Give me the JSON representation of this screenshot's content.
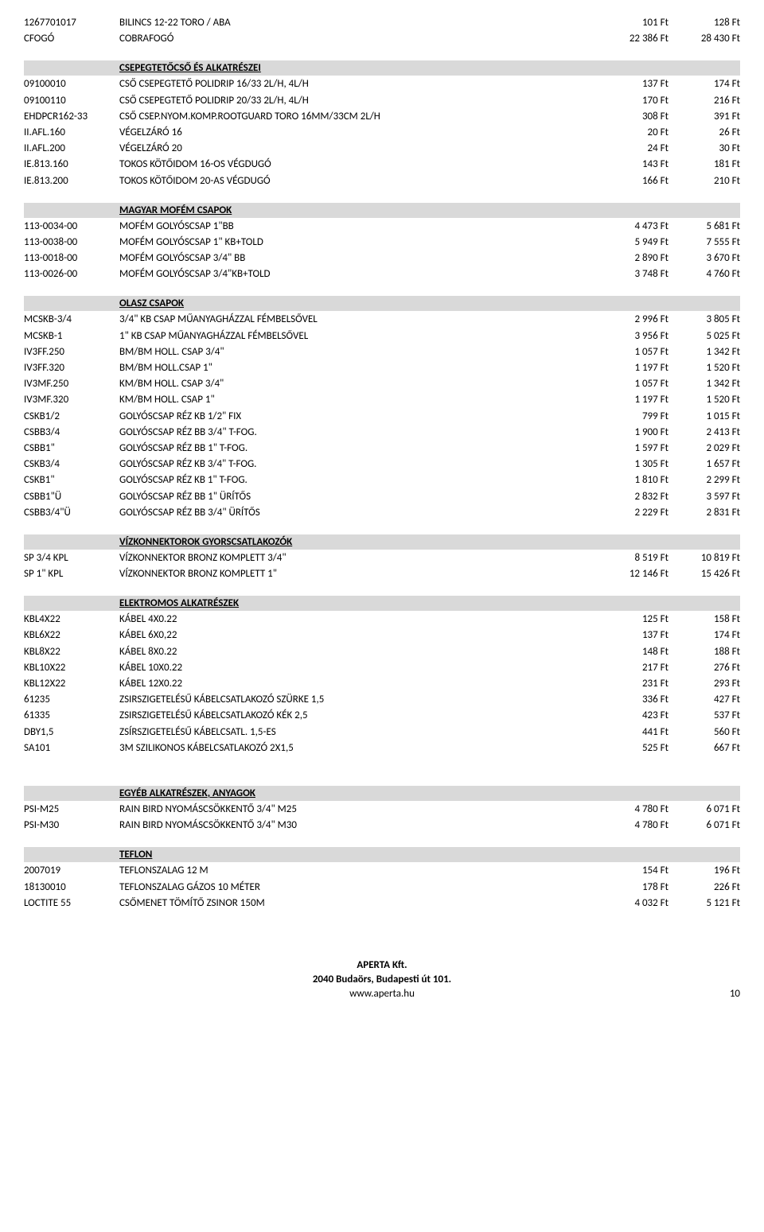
{
  "top_rows": [
    {
      "code": "1267701017",
      "desc": "BILINCS 12-22 TORO / ABA",
      "p1": "101 Ft",
      "p2": "128 Ft"
    },
    {
      "code": "CFOGÓ",
      "desc": "COBRAFOGÓ",
      "p1": "22 386 Ft",
      "p2": "28 430 Ft"
    }
  ],
  "sections": [
    {
      "title": "CSEPEGTETŐCSŐ ÉS ALKATRÉSZEI",
      "rows": [
        {
          "code": "09100010",
          "desc": "CSŐ CSEPEGTETŐ POLIDRIP 16/33 2L/H, 4L/H",
          "p1": "137 Ft",
          "p2": "174 Ft"
        },
        {
          "code": "09100110",
          "desc": "CSŐ CSEPEGTETŐ POLIDRIP 20/33 2L/H, 4L/H",
          "p1": "170 Ft",
          "p2": "216 Ft"
        },
        {
          "code": "EHDPCR162-33",
          "desc": "CSŐ CSEP.NYOM.KOMP.ROOTGUARD TORO 16MM/33CM 2L/H",
          "p1": "308 Ft",
          "p2": "391 Ft"
        },
        {
          "code": "II.AFL.160",
          "desc": "VÉGELZÁRÓ 16",
          "p1": "20 Ft",
          "p2": "26 Ft"
        },
        {
          "code": "II.AFL.200",
          "desc": "VÉGELZÁRÓ 20",
          "p1": "24 Ft",
          "p2": "30 Ft"
        },
        {
          "code": "IE.813.160",
          "desc": "TOKOS KÖTŐIDOM 16-OS VÉGDUGÓ",
          "p1": "143 Ft",
          "p2": "181 Ft"
        },
        {
          "code": "IE.813.200",
          "desc": "TOKOS KÖTŐIDOM 20-AS VÉGDUGÓ",
          "p1": "166 Ft",
          "p2": "210 Ft"
        }
      ]
    },
    {
      "title": "MAGYAR MOFÉM CSAPOK",
      "rows": [
        {
          "code": "113-0034-00",
          "desc": "MOFÉM GOLYÓSCSAP 1\"BB",
          "p1": "4 473 Ft",
          "p2": "5 681 Ft"
        },
        {
          "code": "113-0038-00",
          "desc": "MOFÉM GOLYÓSCSAP 1\" KB+TOLD",
          "p1": "5 949 Ft",
          "p2": "7 555 Ft"
        },
        {
          "code": "113-0018-00",
          "desc": "MOFÉM GOLYÓSCSAP 3/4\" BB",
          "p1": "2 890 Ft",
          "p2": "3 670 Ft"
        },
        {
          "code": "113-0026-00",
          "desc": "MOFÉM GOLYÓSCSAP 3/4\"KB+TOLD",
          "p1": "3 748 Ft",
          "p2": "4 760 Ft"
        }
      ]
    },
    {
      "title": "OLASZ CSAPOK",
      "rows": [
        {
          "code": "MCSKB-3/4",
          "desc": "3/4\" KB CSAP MŰANYAGHÁZZAL FÉMBELSŐVEL",
          "p1": "2 996 Ft",
          "p2": "3 805 Ft"
        },
        {
          "code": "MCSKB-1",
          "desc": "1\" KB CSAP MŰANYAGHÁZZAL FÉMBELSŐVEL",
          "p1": "3 956 Ft",
          "p2": "5 025 Ft"
        },
        {
          "code": "IV3FF.250",
          "desc": "BM/BM HOLL. CSAP 3/4\"",
          "p1": "1 057 Ft",
          "p2": "1 342 Ft"
        },
        {
          "code": "IV3FF.320",
          "desc": "BM/BM HOLL.CSAP 1\"",
          "p1": "1 197 Ft",
          "p2": "1 520 Ft"
        },
        {
          "code": "IV3MF.250",
          "desc": "KM/BM HOLL. CSAP 3/4\"",
          "p1": "1 057 Ft",
          "p2": "1 342 Ft"
        },
        {
          "code": "IV3MF.320",
          "desc": "KM/BM HOLL. CSAP 1\"",
          "p1": "1 197 Ft",
          "p2": "1 520 Ft"
        },
        {
          "code": "CSKB1/2",
          "desc": "GOLYÓSCSAP RÉZ KB 1/2\" FIX",
          "p1": "799 Ft",
          "p2": "1 015 Ft"
        },
        {
          "code": "CSBB3/4",
          "desc": "GOLYÓSCSAP RÉZ BB 3/4\"  T-FOG.",
          "p1": "1 900 Ft",
          "p2": "2 413 Ft"
        },
        {
          "code": "CSBB1\"",
          "desc": "GOLYÓSCSAP RÉZ BB 1\"  T-FOG.",
          "p1": "1 597 Ft",
          "p2": "2 029 Ft"
        },
        {
          "code": "CSKB3/4",
          "desc": "GOLYÓSCSAP RÉZ KB 3/4\"  T-FOG.",
          "p1": "1 305 Ft",
          "p2": "1 657 Ft"
        },
        {
          "code": "CSKB1\"",
          "desc": "GOLYÓSCSAP RÉZ KB 1\"  T-FOG.",
          "p1": "1 810 Ft",
          "p2": "2 299 Ft"
        },
        {
          "code": "CSBB1\"Ü",
          "desc": "GOLYÓSCSAP RÉZ BB 1\" ÜRÍTŐS",
          "p1": "2 832 Ft",
          "p2": "3 597 Ft"
        },
        {
          "code": "CSBB3/4\"Ü",
          "desc": "GOLYÓSCSAP RÉZ BB 3/4\" ÜRÍTŐS",
          "p1": "2 229 Ft",
          "p2": "2 831 Ft"
        }
      ]
    },
    {
      "title": "VÍZKONNEKTOROK GYORSCSATLAKOZÓK",
      "rows": [
        {
          "code": "SP 3/4 KPL",
          "desc": "VÍZKONNEKTOR BRONZ KOMPLETT 3/4\"",
          "p1": "8 519 Ft",
          "p2": "10 819 Ft"
        },
        {
          "code": "SP 1\" KPL",
          "desc": "VÍZKONNEKTOR BRONZ KOMPLETT 1\"",
          "p1": "12 146 Ft",
          "p2": "15 426 Ft"
        }
      ]
    },
    {
      "title": "ELEKTROMOS ALKATRÉSZEK",
      "rows": [
        {
          "code": "KBL4X22",
          "desc": "KÁBEL 4X0.22",
          "p1": "125 Ft",
          "p2": "158 Ft"
        },
        {
          "code": "KBL6X22",
          "desc": "KÁBEL 6X0,22",
          "p1": "137 Ft",
          "p2": "174 Ft"
        },
        {
          "code": "KBL8X22",
          "desc": "KÁBEL 8X0.22",
          "p1": "148 Ft",
          "p2": "188 Ft"
        },
        {
          "code": "KBL10X22",
          "desc": "KÁBEL 10X0.22",
          "p1": "217 Ft",
          "p2": "276 Ft"
        },
        {
          "code": "KBL12X22",
          "desc": "KÁBEL 12X0.22",
          "p1": "231 Ft",
          "p2": "293 Ft"
        },
        {
          "code": "61235",
          "desc": "ZSIRSZIGETELÉSŰ KÁBELCSATLAKOZÓ SZÜRKE 1,5",
          "p1": "336 Ft",
          "p2": "427 Ft"
        },
        {
          "code": "61335",
          "desc": "ZSIRSZIGETELÉSŰ KÁBELCSATLAKOZÓ KÉK 2,5",
          "p1": "423 Ft",
          "p2": "537 Ft"
        },
        {
          "code": "DBY1,5",
          "desc": "ZSÍRSZIGETELÉSŰ KÁBELCSATL. 1,5-ES",
          "p1": "441 Ft",
          "p2": "560 Ft"
        },
        {
          "code": "SA101",
          "desc": "3M SZILIKONOS KÁBELCSATLAKOZÓ 2X1,5",
          "p1": "525 Ft",
          "p2": "667 Ft"
        }
      ]
    },
    {
      "title": "EGYÉB ALKATRÉSZEK, ANYAGOK",
      "extra_gap": true,
      "rows": [
        {
          "code": "PSI-M25",
          "desc": "RAIN BIRD NYOMÁSCSÖKKENTŐ 3/4\" M25",
          "p1": "4 780 Ft",
          "p2": "6 071 Ft"
        },
        {
          "code": "PSI-M30",
          "desc": "RAIN BIRD NYOMÁSCSÖKKENTŐ 3/4\" M30",
          "p1": "4 780 Ft",
          "p2": "6 071 Ft"
        }
      ]
    },
    {
      "title": "TEFLON",
      "rows": [
        {
          "code": "2007019",
          "desc": "TEFLONSZALAG 12 M",
          "p1": "154 Ft",
          "p2": "196 Ft"
        },
        {
          "code": "18130010",
          "desc": "TEFLONSZALAG GÁZOS 10 MÉTER",
          "p1": "178 Ft",
          "p2": "226 Ft"
        },
        {
          "code": "LOCTITE 55",
          "desc": "CSŐMENET TÖMÍTŐ ZSINOR 150M",
          "p1": "4 032 Ft",
          "p2": "5 121 Ft"
        }
      ]
    }
  ],
  "footer": {
    "line1": "APERTA Kft.",
    "line2": "2040 Budaörs, Budapesti út 101.",
    "line3": "www.aperta.hu",
    "page": "10"
  }
}
